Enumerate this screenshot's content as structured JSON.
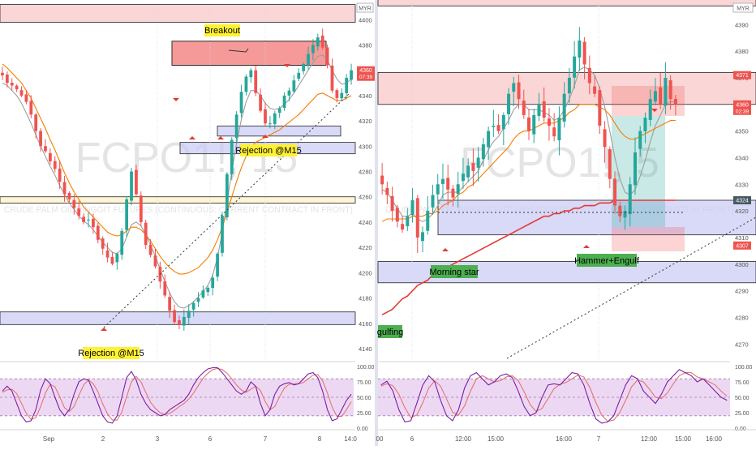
{
  "colors": {
    "candle_up": "#26a69a",
    "candle_down": "#ef5350",
    "sma_gray": "#9e9e9e",
    "ema_orange": "#f57c00",
    "ema_red": "#e53935",
    "resistance_fill": "#f5b5b5",
    "support_fill": "#c9c9f5",
    "oscillator_fill": "#e6c7f0",
    "label_yellow": "#fff133",
    "label_green": "#4caf50",
    "watermark": "#e4e4e4"
  },
  "chart_data": [
    {
      "type": "candlestick",
      "symbol_watermark": "FCPO1!, 15",
      "description_watermark": "CRUDE PALM OIL RINGGIT FUTURES (CONTINUOUS: CURRENT CONTRACT IN FRONT)",
      "x_ticks": [
        "Sep",
        "2",
        "3",
        "6",
        "7",
        "8",
        "14:0"
      ],
      "y_ticks": [
        4400,
        4380,
        4360,
        4340,
        4320,
        4300,
        4280,
        4260,
        4240,
        4220,
        4200,
        4180,
        4160,
        4140
      ],
      "ylim": [
        4131,
        4413
      ],
      "price_badges": [
        {
          "value": 4360,
          "text": "4360",
          "subtext": "07:39",
          "color": "#ef5350"
        }
      ],
      "close_path": [
        4356,
        4350,
        4348,
        4345,
        4340,
        4335,
        4325,
        4312,
        4300,
        4296,
        4288,
        4282,
        4272,
        4262,
        4258,
        4251,
        4245,
        4240,
        4242,
        4236,
        4226,
        4219,
        4212,
        4207,
        4215,
        4233,
        4258,
        4280,
        4262,
        4240,
        4222,
        4214,
        4205,
        4193,
        4182,
        4170,
        4161,
        4159,
        4165,
        4170,
        4176,
        4180,
        4186,
        4188,
        4196,
        4215,
        4245,
        4278,
        4305,
        4325,
        4343,
        4355,
        4360,
        4342,
        4328,
        4318,
        4318,
        4326,
        4330,
        4340,
        4344,
        4352,
        4358,
        4365,
        4373,
        4380,
        4386,
        4378,
        4364,
        4344,
        4338,
        4342,
        4354,
        4360
      ],
      "indicators": [
        {
          "name": "SMA",
          "values": [
            4350,
            4348,
            4344,
            4340,
            4334,
            4326,
            4318,
            4309,
            4300,
            4292,
            4284,
            4277,
            4269,
            4262,
            4255,
            4250,
            4245,
            4241,
            4238,
            4234,
            4229,
            4224,
            4220,
            4216,
            4215,
            4219,
            4228,
            4238,
            4240,
            4237,
            4230,
            4222,
            4213,
            4203,
            4193,
            4184,
            4177,
            4173,
            4172,
            4174,
            4177,
            4181,
            4185,
            4190,
            4198,
            4212,
            4232,
            4256,
            4280,
            4302,
            4321,
            4335,
            4344,
            4344,
            4340,
            4334,
            4330,
            4329,
            4330,
            4333,
            4337,
            4342,
            4348,
            4354,
            4360,
            4366,
            4371,
            4372,
            4368,
            4360,
            4353,
            4349,
            4350,
            4353
          ]
        },
        {
          "name": "EMA",
          "values": [
            4365,
            4362,
            4358,
            4354,
            4350,
            4344,
            4338,
            4330,
            4322,
            4314,
            4305,
            4297,
            4288,
            4279,
            4271,
            4264,
            4258,
            4252,
            4248,
            4244,
            4240,
            4236,
            4232,
            4230,
            4229,
            4230,
            4233,
            4236,
            4236,
            4234,
            4230,
            4225,
            4219,
            4213,
            4208,
            4204,
            4201,
            4199,
            4199,
            4200,
            4202,
            4204,
            4208,
            4212,
            4218,
            4226,
            4236,
            4248,
            4260,
            4272,
            4283,
            4292,
            4299,
            4303,
            4305,
            4307,
            4309,
            4311,
            4313,
            4316,
            4319,
            4322,
            4325,
            4329,
            4333,
            4337,
            4341,
            4342,
            4340,
            4338,
            4336,
            4336,
            4338,
            4340
          ]
        }
      ],
      "zones": [
        {
          "kind": "resistance",
          "from": 4364,
          "to": 4383
        },
        {
          "kind": "resistance",
          "from": 4398,
          "to": 4412
        },
        {
          "kind": "demand",
          "from": 4308,
          "to": 4316
        },
        {
          "kind": "demand",
          "from": 4294,
          "to": 4303
        },
        {
          "kind": "level",
          "from": 4255,
          "to": 4260
        },
        {
          "kind": "demand",
          "from": 4159,
          "to": 4169
        }
      ],
      "annotations": [
        {
          "text": "Breakout",
          "style": "yellow"
        },
        {
          "text": "Rejection @M15",
          "style": "yellow"
        },
        {
          "text": "Rejection @M15",
          "style": "yellow"
        }
      ],
      "oscillator": {
        "name": "Stochastic RSI",
        "y_ticks": [
          100,
          75,
          50,
          25,
          0
        ],
        "labels": [
          "100.00",
          "75.00",
          "50.00",
          "25.00",
          "0.00"
        ],
        "band": [
          20,
          80
        ],
        "k": [
          60,
          68,
          60,
          40,
          20,
          10,
          12,
          30,
          62,
          80,
          72,
          50,
          30,
          20,
          30,
          55,
          75,
          80,
          78,
          60,
          40,
          20,
          10,
          8,
          20,
          50,
          82,
          92,
          78,
          55,
          40,
          30,
          25,
          20,
          22,
          30,
          35,
          40,
          45,
          55,
          70,
          82,
          90,
          96,
          98,
          98,
          90,
          80,
          70,
          60,
          55,
          60,
          75,
          68,
          40,
          20,
          30,
          55,
          68,
          72,
          74,
          70,
          72,
          80,
          88,
          90,
          82,
          60,
          30,
          12,
          15,
          30,
          45,
          55
        ],
        "d": [
          58,
          62,
          63,
          56,
          40,
          24,
          14,
          17,
          35,
          57,
          71,
          67,
          51,
          33,
          27,
          35,
          53,
          70,
          78,
          72,
          59,
          39,
          23,
          13,
          13,
          26,
          51,
          75,
          84,
          75,
          58,
          42,
          32,
          25,
          22,
          24,
          29,
          35,
          40,
          47,
          57,
          69,
          81,
          89,
          95,
          97,
          95,
          89,
          80,
          70,
          62,
          58,
          63,
          68,
          61,
          43,
          30,
          35,
          51,
          65,
          71,
          72,
          72,
          74,
          80,
          86,
          87,
          77,
          57,
          34,
          19,
          19,
          30,
          43
        ]
      }
    },
    {
      "type": "candlestick",
      "symbol_watermark": "FCPO1!, 5",
      "description_watermark": "CRUDE PALM OIL RINGGIT FUTURES (CONTINUOUS: CURRENT CONTRACT IN FRONT)",
      "x_ticks": [
        "00",
        "6",
        "12:00",
        "15:00",
        "16:00",
        "7",
        "12:00",
        "15:00",
        "16:00"
      ],
      "y_ticks": [
        4390,
        4380,
        4370,
        4360,
        4350,
        4340,
        4330,
        4320,
        4310,
        4300,
        4290,
        4280,
        4270
      ],
      "ylim": [
        4264,
        4398
      ],
      "currency_badge": "MYR",
      "price_badges": [
        {
          "value": 4371,
          "text": "4371",
          "color": "#ef5350"
        },
        {
          "value": 4360,
          "text": "4360",
          "subtext": "02:39",
          "color": "#ef5350"
        },
        {
          "value": 4324,
          "text": "4324",
          "color": "#455a64"
        },
        {
          "value": 4307,
          "text": "4307",
          "color": "#ef5350"
        }
      ],
      "close_path": [
        4330,
        4326,
        4320,
        4316,
        4313,
        4318,
        4324,
        4310,
        4312,
        4320,
        4326,
        4330,
        4332,
        4328,
        4325,
        4330,
        4334,
        4337,
        4335,
        4340,
        4345,
        4350,
        4352,
        4350,
        4356,
        4364,
        4368,
        4362,
        4356,
        4350,
        4356,
        4360,
        4355,
        4352,
        4348,
        4355,
        4364,
        4370,
        4378,
        4384,
        4375,
        4368,
        4364,
        4352,
        4344,
        4332,
        4322,
        4318,
        4320,
        4330,
        4342,
        4350,
        4355,
        4362,
        4365,
        4360,
        4370,
        4362,
        4360
      ],
      "indicators": [
        {
          "name": "SMA",
          "values": [
            4328,
            4327,
            4324,
            4321,
            4318,
            4318,
            4319,
            4317,
            4316,
            4317,
            4319,
            4322,
            4326,
            4327,
            4327,
            4327,
            4329,
            4331,
            4333,
            4335,
            4339,
            4343,
            4346,
            4348,
            4351,
            4354,
            4358,
            4360,
            4360,
            4358,
            4358,
            4358,
            4357,
            4356,
            4354,
            4355,
            4358,
            4362,
            4367,
            4373,
            4374,
            4373,
            4371,
            4366,
            4359,
            4350,
            4340,
            4332,
            4327,
            4326,
            4328,
            4333,
            4339,
            4346,
            4352,
            4356,
            4360,
            4361,
            4361
          ]
        },
        {
          "name": "EMA",
          "values": [
            4316,
            4317,
            4317,
            4317,
            4317,
            4317,
            4318,
            4318,
            4318,
            4319,
            4319,
            4320,
            4322,
            4323,
            4324,
            4326,
            4327,
            4329,
            4330,
            4332,
            4334,
            4336,
            4338,
            4340,
            4342,
            4344,
            4347,
            4349,
            4350,
            4350,
            4351,
            4352,
            4353,
            4353,
            4353,
            4354,
            4355,
            4357,
            4358,
            4360,
            4360,
            4360,
            4360,
            4359,
            4358,
            4356,
            4353,
            4350,
            4348,
            4347,
            4347,
            4348,
            4349,
            4350,
            4351,
            4352,
            4353,
            4354,
            4354
          ]
        },
        {
          "name": "EMA200",
          "values": [
            4281,
            4282,
            4283,
            4285,
            4287,
            4288,
            4290,
            4292,
            4293,
            4294,
            4296,
            4297,
            4298,
            4299,
            4300,
            4301,
            4302,
            4303,
            4304,
            4305,
            4306,
            4307,
            4308,
            4309,
            4310,
            4311,
            4312,
            4313,
            4314,
            4315,
            4316,
            4317,
            4318,
            4318,
            4319,
            4319,
            4320,
            4320,
            4321,
            4321,
            4322,
            4322,
            4322,
            4323,
            4323,
            4323,
            4324,
            4324,
            4324,
            4324,
            4324,
            4324,
            4324,
            4324,
            4324,
            4324,
            4324,
            4324,
            4324
          ]
        }
      ],
      "zones": [
        {
          "kind": "resistance",
          "from": 4360,
          "to": 4372
        },
        {
          "kind": "resistance",
          "from": 4397,
          "to": 4400
        },
        {
          "kind": "demand",
          "from": 4311,
          "to": 4324
        },
        {
          "kind": "demand",
          "from": 4293,
          "to": 4301
        }
      ],
      "annotations": [
        {
          "text": "Morning star",
          "style": "green"
        },
        {
          "text": "Hammer+Engulf",
          "style": "green"
        },
        {
          "text": "gulfing",
          "style": "green"
        }
      ],
      "oscillator": {
        "name": "Stochastic RSI",
        "y_ticks": [
          100,
          75,
          50,
          25,
          0
        ],
        "labels": [
          "100.00",
          "75.00",
          "50.00",
          "25.00",
          "0.00"
        ],
        "band": [
          20,
          80
        ],
        "k": [
          70,
          76,
          60,
          30,
          10,
          12,
          40,
          70,
          85,
          75,
          45,
          20,
          12,
          30,
          65,
          85,
          90,
          80,
          70,
          75,
          85,
          88,
          82,
          60,
          35,
          20,
          25,
          50,
          70,
          72,
          70,
          80,
          90,
          88,
          70,
          40,
          15,
          8,
          10,
          20,
          45,
          70,
          85,
          80,
          60,
          50,
          40,
          55,
          75,
          85,
          95,
          90,
          85,
          75,
          80,
          70,
          60,
          50,
          45
        ],
        "d": [
          68,
          72,
          69,
          55,
          33,
          17,
          21,
          41,
          65,
          77,
          68,
          47,
          26,
          21,
          36,
          60,
          80,
          85,
          80,
          75,
          77,
          83,
          85,
          77,
          59,
          38,
          27,
          32,
          48,
          64,
          71,
          74,
          80,
          86,
          83,
          66,
          42,
          21,
          11,
          13,
          25,
          45,
          67,
          78,
          75,
          63,
          50,
          48,
          57,
          72,
          85,
          90,
          90,
          83,
          80,
          75,
          70,
          60,
          52
        ]
      }
    }
  ]
}
